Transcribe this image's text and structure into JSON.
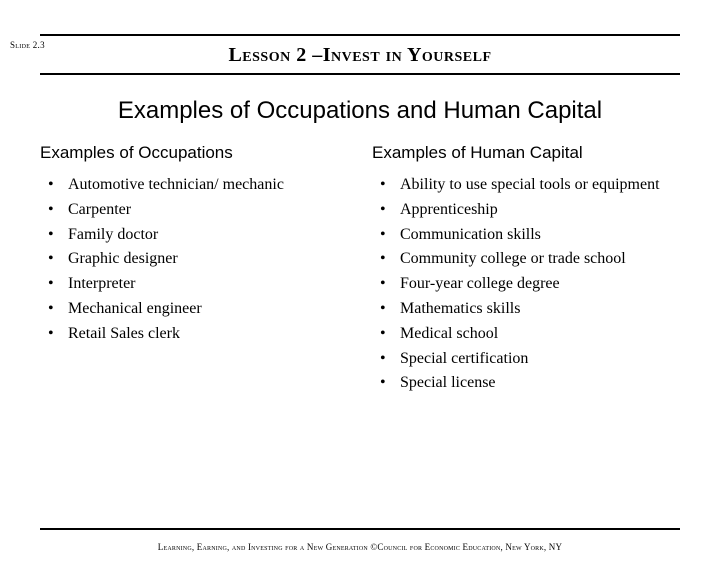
{
  "slide_number": "Slide 2.3",
  "lesson_title": "Lesson 2 –Invest in Yourself",
  "main_title": "Examples of Occupations and Human Capital",
  "left": {
    "heading": "Examples of Occupations",
    "items": [
      "Automotive technician/ mechanic",
      "Carpenter",
      "Family doctor",
      "Graphic designer",
      "Interpreter",
      "Mechanical engineer",
      "Retail Sales clerk"
    ]
  },
  "right": {
    "heading": "Examples of Human Capital",
    "items": [
      "Ability to use special tools or equipment",
      "Apprenticeship",
      "Communication skills",
      "Community college or trade school",
      "Four-year college degree",
      "Mathematics skills",
      "Medical school",
      "Special certification",
      "Special license"
    ]
  },
  "footer": "Learning, Earning, and Investing for a New Generation ©Council for Economic Education, New York, NY"
}
